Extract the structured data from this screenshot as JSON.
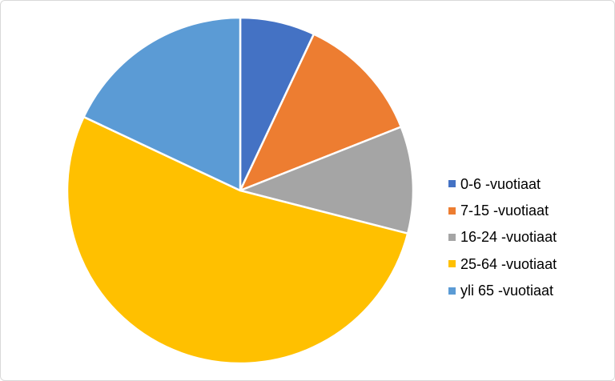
{
  "chart_data": {
    "type": "pie",
    "title": "",
    "categories": [
      "0-6 -vuotiaat",
      "7-15 -vuotiaat",
      "16-24 -vuotiaat",
      "25-64 -vuotiaat",
      "yli 65 -vuotiaat"
    ],
    "values": [
      7,
      12,
      10,
      53,
      18
    ],
    "values_note": "percent share estimated from slice angles (25.2, 43.2, 36.0, 190.8, 64.8 degrees)",
    "colors": [
      "#4472C4",
      "#ED7D31",
      "#A5A5A5",
      "#FFC000",
      "#5B9BD5"
    ],
    "start_angle_deg": 0,
    "direction": "clockwise",
    "slice_border_color": "#FFFFFF",
    "legend_position": "right",
    "legend_text_color": "#000000",
    "background": "#FFFFFF",
    "frame_border_color": "#D9D9D9",
    "grid": false
  }
}
